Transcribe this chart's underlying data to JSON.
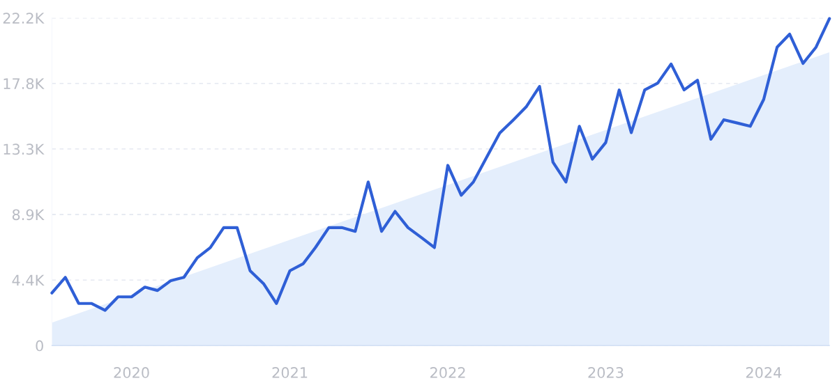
{
  "chart_data": {
    "type": "line",
    "x": [
      "2019-07",
      "2019-08",
      "2019-09",
      "2019-10",
      "2019-11",
      "2019-12",
      "2020-01",
      "2020-02",
      "2020-03",
      "2020-04",
      "2020-05",
      "2020-06",
      "2020-07",
      "2020-08",
      "2020-09",
      "2020-10",
      "2020-11",
      "2020-12",
      "2021-01",
      "2021-02",
      "2021-03",
      "2021-04",
      "2021-05",
      "2021-06",
      "2021-07",
      "2021-08",
      "2021-09",
      "2021-10",
      "2021-11",
      "2021-12",
      "2022-01",
      "2022-02",
      "2022-03",
      "2022-04",
      "2022-05",
      "2022-06",
      "2022-07",
      "2022-08",
      "2022-09",
      "2022-10",
      "2022-11",
      "2022-12",
      "2023-01",
      "2023-02",
      "2023-03",
      "2023-04",
      "2023-05",
      "2023-06",
      "2023-07",
      "2023-08",
      "2023-09",
      "2023-10",
      "2023-11",
      "2023-12",
      "2024-01",
      "2024-02",
      "2024-03",
      "2024-04",
      "2024-05",
      "2024-06"
    ],
    "series": [
      {
        "type": "area",
        "color": "#e4eefc",
        "x": [
          "2019-07",
          "2024-06"
        ],
        "values": [
          1550,
          19880
        ]
      },
      {
        "color": "#2f5fd6",
        "values": [
          3560,
          4620,
          2850,
          2850,
          2390,
          3300,
          3300,
          3960,
          3730,
          4400,
          4620,
          5950,
          6630,
          7990,
          7990,
          5070,
          4200,
          2850,
          5070,
          5550,
          6640,
          7990,
          7990,
          7740,
          11080,
          7740,
          9090,
          7990,
          7320,
          6640,
          12210,
          10180,
          11080,
          12770,
          14400,
          15280,
          16170,
          17560,
          12430,
          11080,
          14860,
          12630,
          13760,
          17320,
          14430,
          17320,
          17780,
          19080,
          17320,
          17980,
          13980,
          15300,
          15080,
          14860,
          16680,
          20220,
          21100,
          19120,
          20220,
          22160
        ]
      }
    ],
    "xlim": [
      "2019-07",
      "2024-06"
    ],
    "xticks": [
      {
        "value": "2020-01",
        "label": "2020"
      },
      {
        "value": "2021-01",
        "label": "2021"
      },
      {
        "value": "2022-01",
        "label": "2022"
      },
      {
        "value": "2023-01",
        "label": "2023"
      },
      {
        "value": "2024-01",
        "label": "2024"
      }
    ],
    "ylim": [
      0,
      22200
    ],
    "yticks": [
      0,
      {
        "value": 4440,
        "label": "4.4K"
      },
      {
        "value": 8880,
        "label": "8.9K"
      },
      {
        "value": 13320,
        "label": "13.3K"
      },
      {
        "value": 17760,
        "label": "17.8K"
      },
      {
        "value": 22200,
        "label": "22.2K"
      }
    ],
    "grid": "y",
    "marker": "none",
    "line_style": "solid"
  }
}
